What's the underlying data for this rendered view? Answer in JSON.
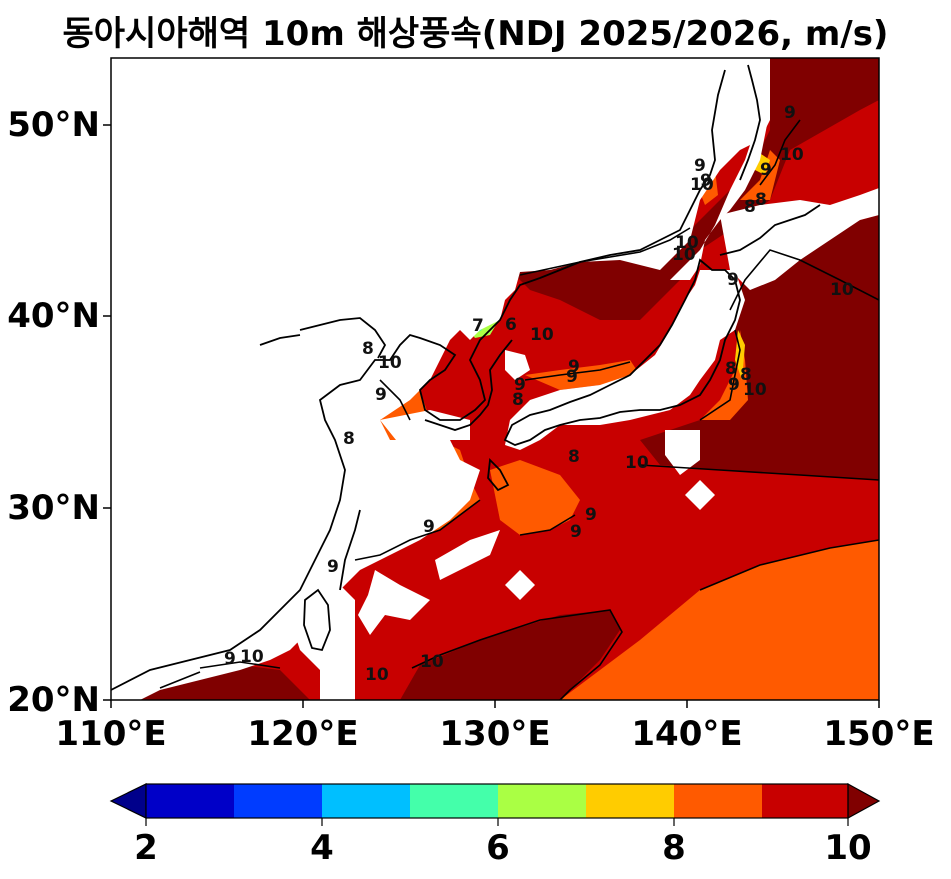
{
  "title": "동아시아해역 10m 해상풍속(NDJ 2025/2026, m/s)",
  "axes": {
    "lat_ticks": [
      "20°N",
      "30°N",
      "40°N",
      "50°N"
    ],
    "lon_ticks": [
      "110°E",
      "120°E",
      "130°E",
      "140°E",
      "150°E"
    ],
    "lon_range": [
      110,
      150
    ],
    "lat_range": [
      20,
      53.3
    ]
  },
  "colorbar": {
    "levels": [
      2,
      3,
      4,
      5,
      6,
      7,
      8,
      9,
      10
    ],
    "tick_labels": [
      "2",
      "4",
      "6",
      "8",
      "10"
    ],
    "colors": [
      "#0000c8",
      "#003cff",
      "#00bfff",
      "#44ffaa",
      "#aaff44",
      "#ffcc00",
      "#ff5a00",
      "#c80000"
    ],
    "under_color": "#00008b",
    "over_color": "#800000",
    "extend": "both"
  },
  "contour_labels": [
    "8",
    "9",
    "10",
    "9",
    "10",
    "8",
    "9",
    "10",
    "9",
    "10",
    "8",
    "9",
    "10",
    "9",
    "8",
    "9",
    "9",
    "10",
    "10",
    "9",
    "10",
    "8",
    "9",
    "9",
    "8",
    "10",
    "6",
    "7",
    "9",
    "8",
    "9",
    "9",
    "10",
    "8",
    "9",
    "10",
    "10"
  ]
}
